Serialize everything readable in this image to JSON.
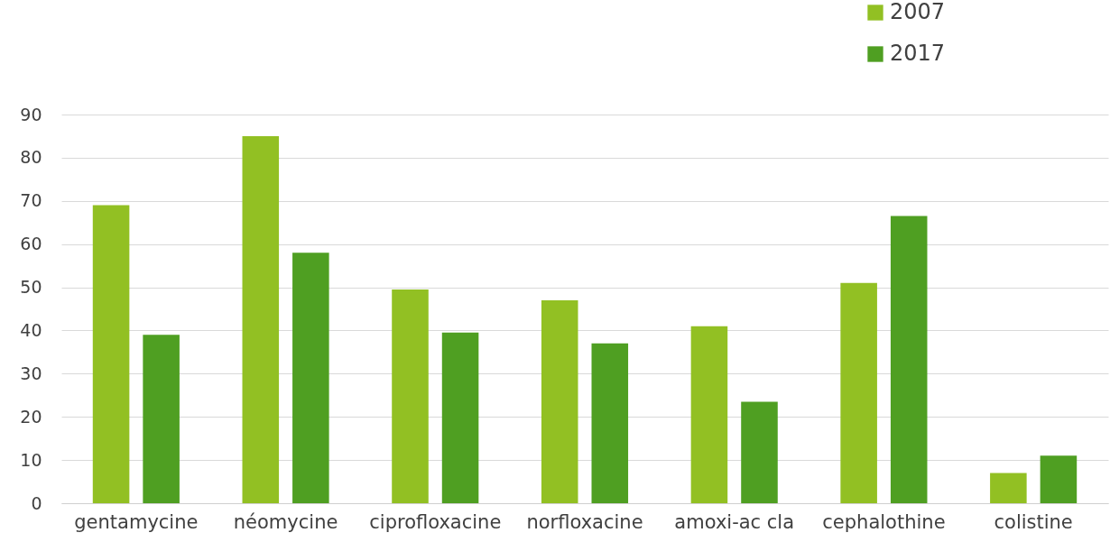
{
  "chart_data": {
    "type": "bar",
    "categories": [
      "gentamycine",
      "néomycine",
      "ciprofloxacine",
      "norfloxacine",
      "amoxi-ac cla",
      "cephalothine",
      "colistine"
    ],
    "series": [
      {
        "name": "2007",
        "color": "#92c023",
        "values": [
          69,
          85,
          49.5,
          47,
          41,
          51,
          7
        ]
      },
      {
        "name": "2017",
        "color": "#4f9f22",
        "values": [
          39,
          58,
          39.5,
          37,
          23.5,
          66.5,
          11
        ]
      }
    ],
    "ylim": [
      0,
      90
    ],
    "yticks": [
      0,
      10,
      20,
      30,
      40,
      50,
      60,
      70,
      80,
      90
    ],
    "grid": "y",
    "legend": "top right"
  }
}
